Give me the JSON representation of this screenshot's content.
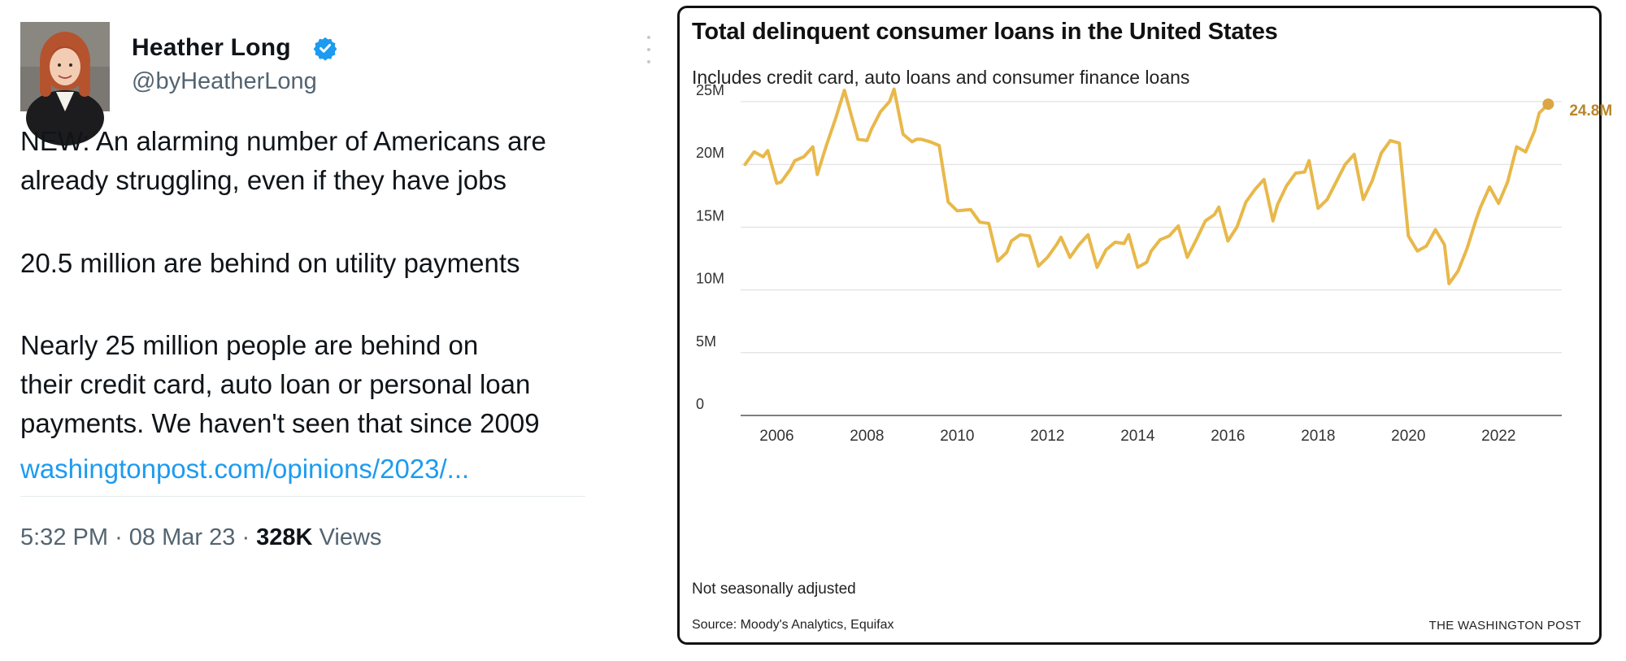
{
  "tweet": {
    "author": {
      "name": "Heather Long",
      "handle": "@byHeatherLong",
      "verified": true
    },
    "body": {
      "p1": [
        "NEW: An alarming number of Americans are",
        "already struggling, even if they have jobs"
      ],
      "p2": [
        "20.5 million are behind on utility payments"
      ],
      "p3": [
        "Nearly 25 million people are behind on",
        "their credit card, auto loan or personal loan",
        "payments. We haven't seen that since 2009"
      ],
      "link": "washingtonpost.com/opinions/2023/..."
    },
    "meta": {
      "time": "5:32 PM",
      "date": "08 Mar 23",
      "views_count": "328K",
      "views_label": "Views",
      "separator": "·"
    },
    "icons": [
      "verified-badge-icon",
      "more-options-icon",
      "avatar"
    ]
  },
  "chart_card": {
    "title": "Total delinquent consumer loans in the United States",
    "subtitle": "Includes credit card, auto loans and consumer finance loans",
    "note": "Not seasonally adjusted",
    "source": "Source: Moody's Analytics, Equifax",
    "brand": "THE WASHINGTON POST"
  },
  "colors": {
    "line": "#e8b84a",
    "endpoint": "#dca543",
    "endpoint_label": "#b8862a",
    "link": "#1d9bf0",
    "verified": "#1d9bf0"
  },
  "chart_data": {
    "type": "line",
    "title": "Total delinquent consumer loans in the United States",
    "subtitle": "Includes credit card, auto loans and consumer finance loans",
    "xlabel": "",
    "ylabel": "",
    "xlim": [
      2005.2,
      2023.4
    ],
    "ylim": [
      0,
      25
    ],
    "x_ticks": [
      2006,
      2008,
      2010,
      2012,
      2014,
      2016,
      2018,
      2020,
      2022
    ],
    "y_ticks": [
      0,
      5,
      10,
      15,
      20,
      25
    ],
    "y_tick_labels": [
      "0",
      "5M",
      "10M",
      "15M",
      "20M",
      "25M"
    ],
    "grid": "horizontal",
    "end_label": "24.8M",
    "series": [
      {
        "x": [
          2005.3,
          2005.5,
          2005.7,
          2005.8,
          2006.0,
          2006.1,
          2006.3,
          2006.4,
          2006.6,
          2006.8,
          2006.9,
          2007.1,
          2007.3,
          2007.5,
          2007.8,
          2008.0,
          2008.1,
          2008.3,
          2008.5,
          2008.6,
          2008.8,
          2009.0,
          2009.1,
          2009.2,
          2009.4,
          2009.6,
          2009.8,
          2010.0,
          2010.3,
          2010.5,
          2010.7,
          2010.9,
          2011.1,
          2011.2,
          2011.4,
          2011.6,
          2011.8,
          2012.0,
          2012.2,
          2012.3,
          2012.5,
          2012.7,
          2012.9,
          2013.1,
          2013.3,
          2013.5,
          2013.7,
          2013.8,
          2014.0,
          2014.2,
          2014.3,
          2014.5,
          2014.7,
          2014.9,
          2015.1,
          2015.3,
          2015.5,
          2015.7,
          2015.8,
          2016.0,
          2016.2,
          2016.4,
          2016.6,
          2016.8,
          2017.0,
          2017.1,
          2017.3,
          2017.5,
          2017.7,
          2017.8,
          2018.0,
          2018.2,
          2018.4,
          2018.6,
          2018.8,
          2019.0,
          2019.2,
          2019.4,
          2019.6,
          2019.8,
          2020.0,
          2020.2,
          2020.4,
          2020.6,
          2020.8,
          2020.9,
          2021.1,
          2021.3,
          2021.5,
          2021.6,
          2021.8,
          2022.0,
          2022.2,
          2022.4,
          2022.6,
          2022.8,
          2022.9,
          2023.1
        ],
        "values": [
          20.0,
          21.0,
          20.6,
          21.1,
          18.5,
          18.6,
          19.6,
          20.3,
          20.6,
          21.4,
          19.2,
          21.5,
          23.6,
          25.9,
          22.0,
          21.9,
          22.8,
          24.2,
          25.0,
          26.0,
          22.4,
          21.8,
          22.0,
          22.0,
          21.8,
          21.5,
          17.0,
          16.3,
          16.4,
          15.4,
          15.3,
          12.3,
          13.0,
          13.9,
          14.4,
          14.3,
          11.9,
          12.6,
          13.6,
          14.2,
          12.6,
          13.6,
          14.4,
          11.8,
          13.2,
          13.8,
          13.7,
          14.4,
          11.8,
          12.2,
          13.1,
          14.0,
          14.3,
          15.1,
          12.6,
          14.0,
          15.5,
          16.0,
          16.6,
          13.9,
          15.0,
          17.0,
          18.0,
          18.8,
          15.5,
          16.8,
          18.3,
          19.3,
          19.4,
          20.3,
          16.5,
          17.2,
          18.6,
          20.0,
          20.8,
          17.2,
          18.7,
          20.9,
          21.9,
          21.7,
          14.3,
          13.1,
          13.5,
          14.8,
          13.6,
          10.5,
          11.5,
          13.3,
          15.6,
          16.6,
          18.2,
          16.9,
          18.6,
          21.4,
          21.0,
          22.7,
          24.1,
          24.8
        ]
      }
    ]
  }
}
